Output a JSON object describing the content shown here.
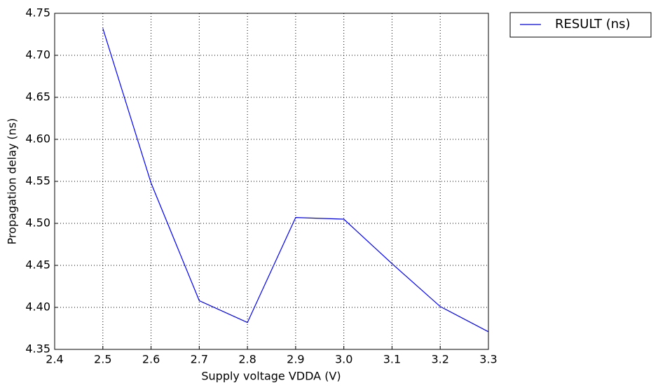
{
  "chart_data": {
    "type": "line",
    "xlabel": "Supply voltage VDDA (V)",
    "ylabel": "Propagation delay (ns)",
    "x": [
      2.5,
      2.6,
      2.7,
      2.8,
      2.9,
      3.0,
      3.1,
      3.2,
      3.3
    ],
    "series": [
      {
        "name": "RESULT (ns)",
        "color": "#0000ff",
        "values": [
          4.732,
          4.548,
          4.408,
          4.382,
          4.507,
          4.505,
          4.452,
          4.401,
          4.371
        ]
      }
    ],
    "xlim": [
      2.4,
      3.3
    ],
    "xticks": [
      2.4,
      2.5,
      2.6,
      2.7,
      2.8,
      2.9,
      {
        "value": 3.0,
        "label": "3.0"
      },
      3.1,
      3.2,
      3.3
    ],
    "ylim": [
      4.35,
      4.75
    ],
    "yticks": [
      4.35,
      {
        "value": 4.4,
        "label": "4.40"
      },
      4.45,
      {
        "value": 4.5,
        "label": "4.50"
      },
      4.55,
      {
        "value": 4.6,
        "label": "4.60"
      },
      4.65,
      {
        "value": 4.7,
        "label": "4.70"
      },
      4.75
    ],
    "grid": true,
    "legend": "outside-upper-right"
  }
}
